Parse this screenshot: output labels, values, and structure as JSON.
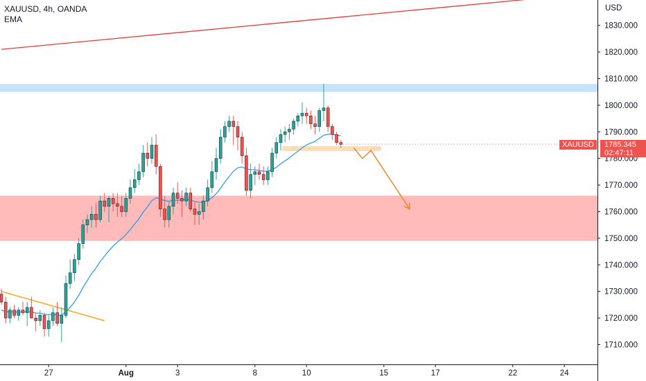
{
  "header": {
    "symbol_line": "XAUUSD, 4h, OANDA",
    "indicator": "EMA"
  },
  "axis": {
    "currency": "USD"
  },
  "price_badge": {
    "symbol": "XAUUSD",
    "price": "1785.345",
    "countdown": "02:47:11"
  },
  "colors": {
    "up": "#26a69a",
    "down": "#ef5350",
    "ema": "#2196f3",
    "trendline_red": "#e53935",
    "trendline_orange": "#ff9800",
    "resistance_zone": "#bbdefb",
    "support_zone": "#ffb3b3",
    "small_zone": "#ffd8a8",
    "arrow": "#e8892e"
  },
  "chart_data": {
    "type": "candlestick",
    "title": "XAUUSD, 4h, OANDA",
    "ylabel": "USD",
    "ylim": [
      1702,
      1843
    ],
    "y_ticks": [
      1710,
      1720,
      1730,
      1740,
      1750,
      1760,
      1770,
      1780,
      1790,
      1800,
      1810,
      1820,
      1830
    ],
    "y_tick_labels": [
      "1710.000",
      "1720.000",
      "1730.000",
      "1740.000",
      "1750.000",
      "1760.000",
      "1770.000",
      "1780.000",
      "1790.000",
      "1800.000",
      "1810.000",
      "1820.000",
      "1830.000"
    ],
    "x_ticks": [
      {
        "label": "27",
        "bar": 11
      },
      {
        "label": "Aug",
        "bar": 29
      },
      {
        "label": "3",
        "bar": 41
      },
      {
        "label": "8",
        "bar": 59
      },
      {
        "label": "10",
        "bar": 71
      },
      {
        "label": "15",
        "bar": 89
      },
      {
        "label": "17",
        "bar": 101
      },
      {
        "label": "22",
        "bar": 119
      },
      {
        "label": "24",
        "bar": 131
      }
    ],
    "candles": [
      [
        1729,
        1731,
        1725,
        1726
      ],
      [
        1726,
        1728,
        1718,
        1720
      ],
      [
        1720,
        1724,
        1718,
        1723
      ],
      [
        1723,
        1725,
        1720,
        1721
      ],
      [
        1721,
        1724,
        1719,
        1723
      ],
      [
        1723,
        1726,
        1721,
        1722
      ],
      [
        1722,
        1726,
        1717,
        1724
      ],
      [
        1724,
        1728,
        1720,
        1720
      ],
      [
        1720,
        1722,
        1715,
        1719
      ],
      [
        1719,
        1723,
        1717,
        1721
      ],
      [
        1721,
        1722,
        1713,
        1716
      ],
      [
        1716,
        1721,
        1713,
        1719
      ],
      [
        1719,
        1724,
        1717,
        1722
      ],
      [
        1722,
        1726,
        1717,
        1718
      ],
      [
        1718,
        1724,
        1711,
        1721
      ],
      [
        1721,
        1736,
        1720,
        1733
      ],
      [
        1733,
        1742,
        1731,
        1737
      ],
      [
        1737,
        1744,
        1734,
        1742
      ],
      [
        1742,
        1750,
        1740,
        1748
      ],
      [
        1748,
        1757,
        1746,
        1755
      ],
      [
        1755,
        1759,
        1752,
        1757
      ],
      [
        1757,
        1762,
        1754,
        1759
      ],
      [
        1759,
        1763,
        1754,
        1757
      ],
      [
        1757,
        1766,
        1756,
        1764
      ],
      [
        1764,
        1767,
        1760,
        1762
      ],
      [
        1762,
        1766,
        1756,
        1765
      ],
      [
        1765,
        1767,
        1760,
        1763
      ],
      [
        1763,
        1767,
        1758,
        1762
      ],
      [
        1762,
        1766,
        1758,
        1760
      ],
      [
        1760,
        1767,
        1758,
        1765
      ],
      [
        1765,
        1772,
        1763,
        1769
      ],
      [
        1769,
        1776,
        1767,
        1772
      ],
      [
        1772,
        1778,
        1770,
        1775
      ],
      [
        1775,
        1785,
        1773,
        1782
      ],
      [
        1782,
        1786,
        1777,
        1780
      ],
      [
        1780,
        1788,
        1778,
        1785
      ],
      [
        1785,
        1789,
        1774,
        1777
      ],
      [
        1777,
        1778,
        1758,
        1761
      ],
      [
        1761,
        1766,
        1754,
        1757
      ],
      [
        1757,
        1764,
        1754,
        1762
      ],
      [
        1762,
        1769,
        1759,
        1767
      ],
      [
        1767,
        1771,
        1763,
        1765
      ],
      [
        1765,
        1768,
        1758,
        1764
      ],
      [
        1764,
        1769,
        1762,
        1767
      ],
      [
        1767,
        1769,
        1760,
        1761
      ],
      [
        1761,
        1764,
        1755,
        1759
      ],
      [
        1759,
        1763,
        1755,
        1760
      ],
      [
        1760,
        1766,
        1757,
        1764
      ],
      [
        1764,
        1772,
        1762,
        1769
      ],
      [
        1769,
        1779,
        1767,
        1775
      ],
      [
        1775,
        1784,
        1772,
        1780
      ],
      [
        1780,
        1791,
        1778,
        1788
      ],
      [
        1788,
        1794,
        1786,
        1792
      ],
      [
        1792,
        1796,
        1790,
        1794
      ],
      [
        1794,
        1796,
        1785,
        1792
      ],
      [
        1792,
        1794,
        1783,
        1788
      ],
      [
        1788,
        1790,
        1778,
        1781
      ],
      [
        1781,
        1784,
        1766,
        1768
      ],
      [
        1768,
        1778,
        1765,
        1774
      ],
      [
        1774,
        1777,
        1770,
        1775
      ],
      [
        1775,
        1778,
        1772,
        1774
      ],
      [
        1774,
        1777,
        1770,
        1772
      ],
      [
        1772,
        1777,
        1770,
        1775
      ],
      [
        1775,
        1784,
        1773,
        1782
      ],
      [
        1782,
        1788,
        1780,
        1786
      ],
      [
        1786,
        1791,
        1783,
        1789
      ],
      [
        1789,
        1792,
        1786,
        1790
      ],
      [
        1790,
        1793,
        1787,
        1791
      ],
      [
        1791,
        1795,
        1789,
        1794
      ],
      [
        1794,
        1797,
        1792,
        1796
      ],
      [
        1796,
        1801,
        1793,
        1797
      ],
      [
        1797,
        1799,
        1793,
        1796
      ],
      [
        1796,
        1798,
        1791,
        1793
      ],
      [
        1793,
        1796,
        1789,
        1792
      ],
      [
        1792,
        1799,
        1790,
        1798
      ],
      [
        1798,
        1808,
        1794,
        1799
      ],
      [
        1799,
        1800,
        1790,
        1792
      ],
      [
        1792,
        1793,
        1787,
        1789
      ],
      [
        1789,
        1790,
        1785,
        1786
      ],
      [
        1786,
        1787,
        1784,
        1785.3
      ]
    ],
    "ema": [
      1723,
      1722.4,
      1722.4,
      1722.2,
      1722.3,
      1722.2,
      1722.4,
      1722.2,
      1721.9,
      1721.8,
      1721.4,
      1721.3,
      1721.4,
      1721.1,
      1721.1,
      1722.3,
      1724,
      1726,
      1728.5,
      1731.5,
      1734.1,
      1736.7,
      1738.8,
      1741.3,
      1743.3,
      1745.3,
      1747,
      1748.6,
      1749.8,
      1751.4,
      1753.3,
      1755.3,
      1757.3,
      1759.8,
      1761.8,
      1764.1,
      1765.2,
      1764.8,
      1764.1,
      1763.9,
      1764.2,
      1764.3,
      1764.3,
      1764.6,
      1764.3,
      1763.8,
      1763.5,
      1763.6,
      1764.1,
      1765.2,
      1766.8,
      1768.8,
      1771.1,
      1773.2,
      1775.2,
      1776.5,
      1776.8,
      1776,
      1775.8,
      1775.7,
      1775.5,
      1775.2,
      1775.2,
      1775.8,
      1776.7,
      1778,
      1779.1,
      1780.2,
      1781.5,
      1782.7,
      1784,
      1785.1,
      1785.8,
      1786.4,
      1787.6,
      1788.7,
      1789.1,
      1789.1,
      1788.8,
      1788.5
    ],
    "zones": [
      {
        "name": "resistance",
        "from": 1805,
        "to": 1808
      },
      {
        "name": "support",
        "from": 1749,
        "to": 1766
      },
      {
        "name": "breakdown",
        "bar_from": 66,
        "bar_to": 89,
        "from": 1782.8,
        "to": 1784.6
      }
    ],
    "trendlines": [
      {
        "name": "long-term-red",
        "points": [
          [
            0,
            1821
          ],
          [
            140,
            1842.5
          ]
        ]
      },
      {
        "name": "descending-orange",
        "points": [
          [
            0,
            1730
          ],
          [
            24,
            1719
          ]
        ]
      }
    ],
    "projection": [
      [
        82,
        1784
      ],
      [
        84,
        1780
      ],
      [
        86,
        1783
      ],
      [
        95,
        1761
      ]
    ],
    "last_price": 1785.345
  }
}
